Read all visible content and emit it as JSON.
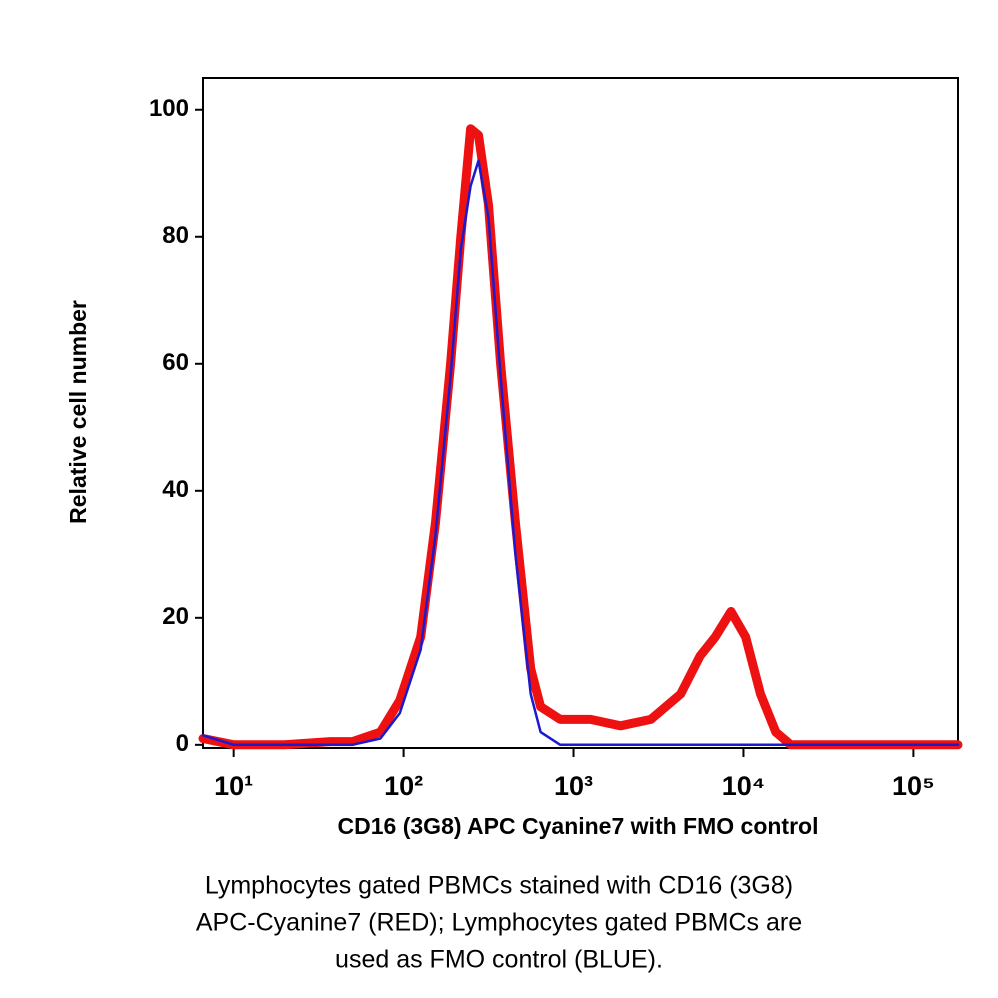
{
  "chart_data": {
    "type": "line",
    "x_label": "CD16 (3G8) APC Cyanine7 with FMO control",
    "y_label": "Relative cell number",
    "caption": [
      "Lymphocytes gated PBMCs stained with CD16 (3G8)",
      "APC-Cyanine7 (RED); Lymphocytes gated PBMCs are",
      "used as FMO control (BLUE)."
    ],
    "x_scale": "log",
    "x": [
      6.6,
      10,
      20,
      37,
      50,
      73,
      95,
      126,
      154,
      189,
      217,
      248,
      276,
      316,
      372,
      455,
      560,
      640,
      835,
      1260,
      1890,
      2850,
      4270,
      5560,
      6830,
      8440,
      10300,
      12600,
      15500,
      19000,
      50000,
      183000
    ],
    "series": [
      {
        "name": "RED",
        "color": "#ee1111",
        "values": [
          1,
          0,
          0,
          0.5,
          0.5,
          2,
          7,
          17,
          35,
          60,
          80,
          97,
          96,
          85,
          60,
          35,
          12,
          6,
          4,
          4,
          3,
          4,
          8,
          14,
          17,
          21,
          17,
          8,
          2,
          0,
          0,
          0
        ]
      },
      {
        "name": "BLUE",
        "color": "#1a1ad0",
        "values": [
          1.5,
          0,
          0,
          0,
          0,
          1,
          5,
          15,
          33,
          58,
          78,
          88,
          92,
          83,
          58,
          30,
          8,
          2,
          0,
          0,
          0,
          0,
          0,
          0,
          0,
          0,
          0,
          0,
          0,
          0,
          0,
          0
        ]
      }
    ],
    "xlim": [
      6.6,
      183000
    ],
    "xticks": [
      {
        "value": 10,
        "label": "10¹"
      },
      {
        "value": 100,
        "label": "10²"
      },
      {
        "value": 1000,
        "label": "10³"
      },
      {
        "value": 10000,
        "label": "10⁴"
      },
      {
        "value": 100000,
        "label": "10⁵"
      }
    ],
    "ylim": [
      -0.5,
      105
    ],
    "yticks": [
      0,
      20,
      40,
      60,
      80,
      100
    ]
  }
}
